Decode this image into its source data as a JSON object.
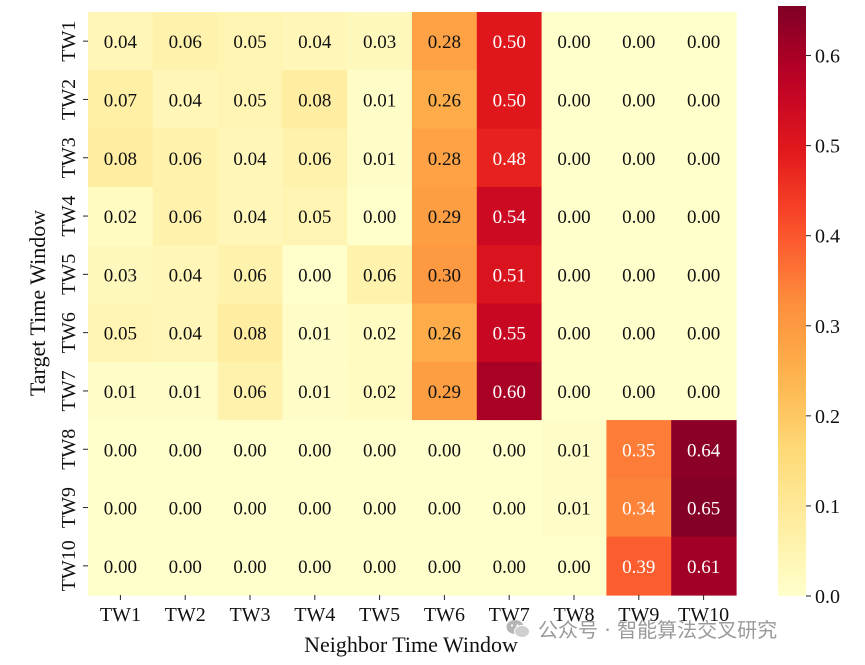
{
  "chart_data": {
    "type": "heatmap",
    "xlabel": "Neighbor Time Window",
    "ylabel": "Target Time Window",
    "x_categories": [
      "TW1",
      "TW2",
      "TW3",
      "TW4",
      "TW5",
      "TW6",
      "TW7",
      "TW8",
      "TW9",
      "TW10"
    ],
    "y_categories": [
      "TW1",
      "TW2",
      "TW3",
      "TW4",
      "TW5",
      "TW6",
      "TW7",
      "TW8",
      "TW9",
      "TW10"
    ],
    "values": [
      [
        0.04,
        0.06,
        0.05,
        0.04,
        0.03,
        0.28,
        0.5,
        0.0,
        0.0,
        0.0
      ],
      [
        0.07,
        0.04,
        0.05,
        0.08,
        0.01,
        0.26,
        0.5,
        0.0,
        0.0,
        0.0
      ],
      [
        0.08,
        0.06,
        0.04,
        0.06,
        0.01,
        0.28,
        0.48,
        0.0,
        0.0,
        0.0
      ],
      [
        0.02,
        0.06,
        0.04,
        0.05,
        0.0,
        0.29,
        0.54,
        0.0,
        0.0,
        0.0
      ],
      [
        0.03,
        0.04,
        0.06,
        0.0,
        0.06,
        0.3,
        0.51,
        0.0,
        0.0,
        0.0
      ],
      [
        0.05,
        0.04,
        0.08,
        0.01,
        0.02,
        0.26,
        0.55,
        0.0,
        0.0,
        0.0
      ],
      [
        0.01,
        0.01,
        0.06,
        0.01,
        0.02,
        0.29,
        0.6,
        0.0,
        0.0,
        0.0
      ],
      [
        0.0,
        0.0,
        0.0,
        0.0,
        0.0,
        0.0,
        0.0,
        0.01,
        0.35,
        0.64
      ],
      [
        0.0,
        0.0,
        0.0,
        0.0,
        0.0,
        0.0,
        0.0,
        0.01,
        0.34,
        0.65
      ],
      [
        0.0,
        0.0,
        0.0,
        0.0,
        0.0,
        0.0,
        0.0,
        0.0,
        0.39,
        0.61
      ]
    ],
    "value_format": "2 decimals",
    "colormap": "YlOrRd",
    "colorbar_ticks": [
      "0.0",
      "0.1",
      "0.2",
      "0.3",
      "0.4",
      "0.5",
      "0.6"
    ],
    "colorbar_range": [
      0,
      0.655
    ]
  },
  "watermark": {
    "text": "公众号 · 智能算法交叉研究",
    "icon": "wechat-icon"
  }
}
